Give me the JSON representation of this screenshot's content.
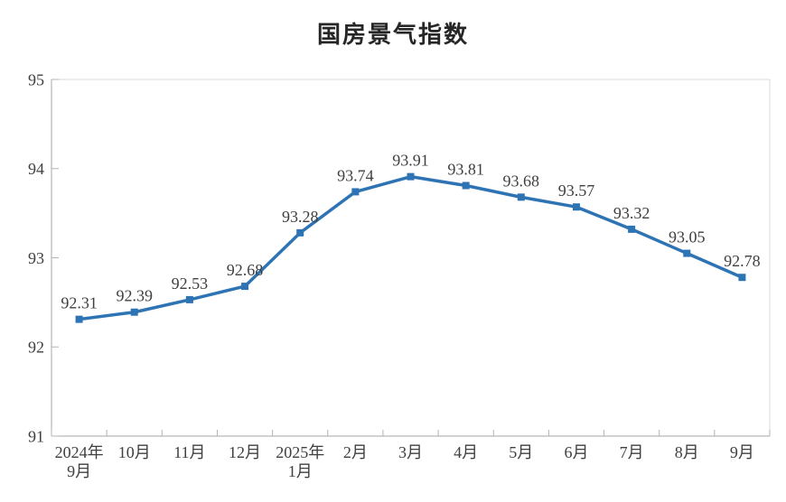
{
  "page": {
    "background": "#ffffff"
  },
  "chart_data": {
    "type": "line",
    "title": "国房景气指数",
    "series": [
      {
        "name": "国房景气指数",
        "values": [
          92.31,
          92.39,
          92.53,
          92.68,
          93.28,
          93.74,
          93.91,
          93.81,
          93.68,
          93.57,
          93.32,
          93.05,
          92.78
        ]
      }
    ],
    "categories": [
      "2024年\n9月",
      "10月",
      "11月",
      "12月",
      "2025年\n1月",
      "2月",
      "3月",
      "4月",
      "5月",
      "6月",
      "7月",
      "8月",
      "9月"
    ],
    "xlabel": "",
    "ylabel": "",
    "ylim": [
      91,
      95
    ],
    "yticks": [
      91,
      92,
      93,
      94,
      95
    ],
    "grid": false,
    "legend_position": "none",
    "data_labels_visible": true,
    "marker_shape": "square",
    "colors": {
      "line": "#2E74B5",
      "marker": "#2E74B5",
      "data_label_text": "#3f3f3f",
      "axis_text": "#3f3f3f",
      "axis_line": "#a6a6a6",
      "tick_line": "#b3b3b3",
      "plot_border": "#d9d9d9",
      "title_text": "#262626"
    }
  }
}
